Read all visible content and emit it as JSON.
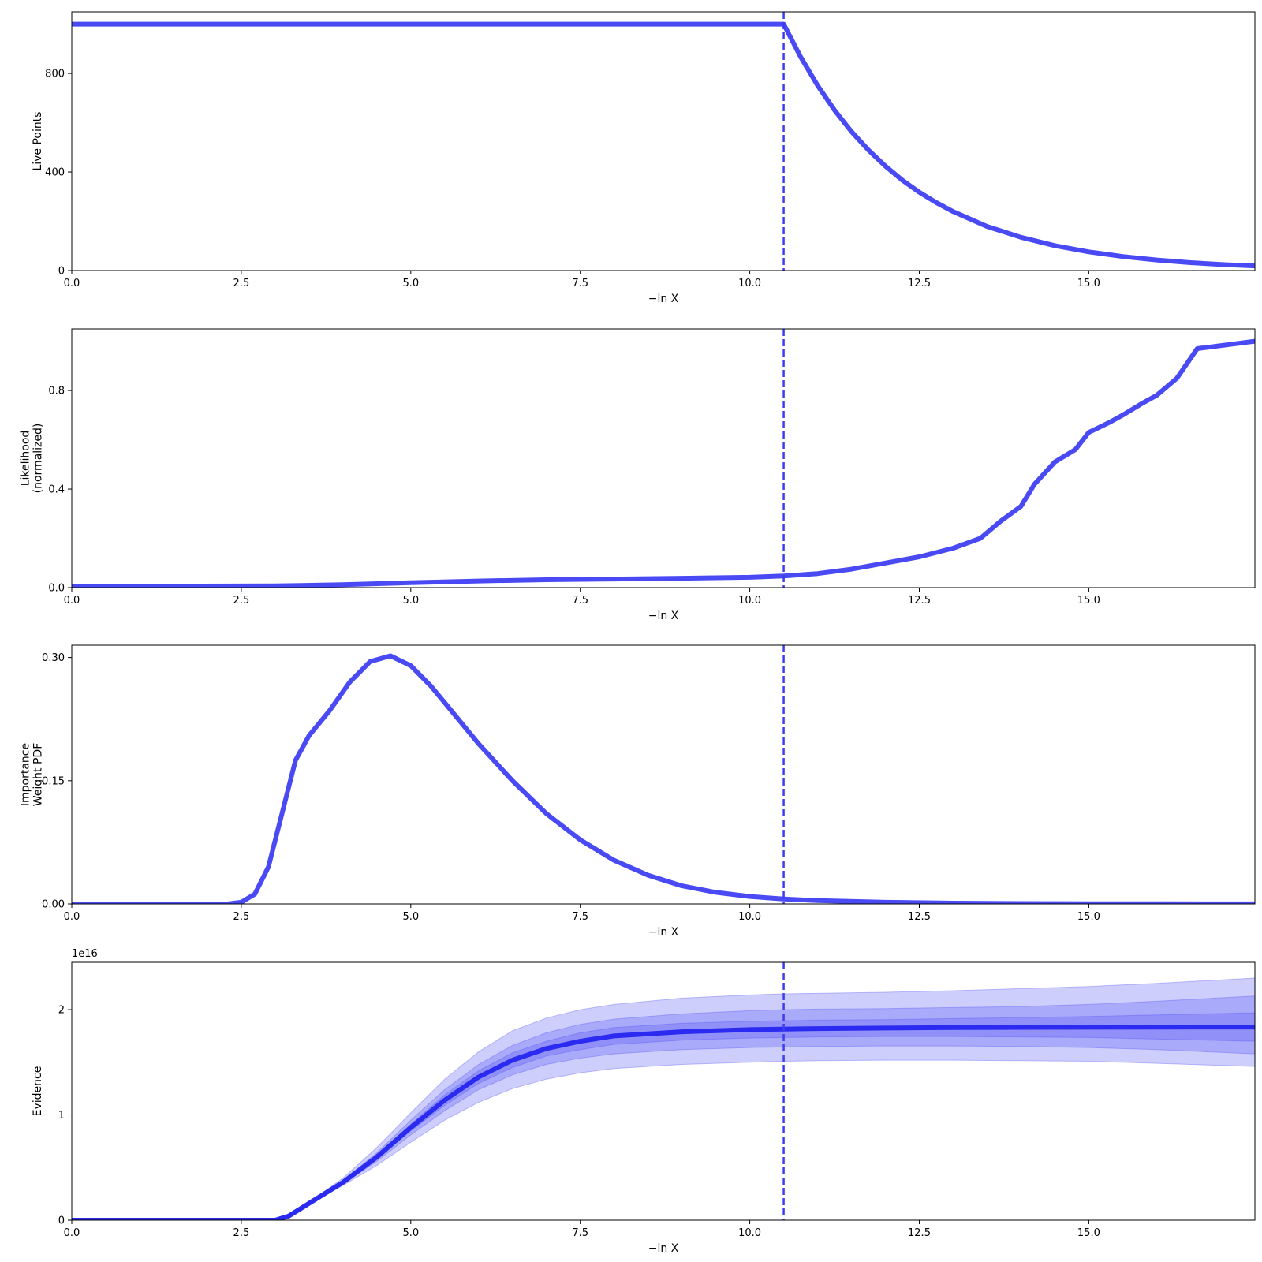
{
  "colors": {
    "line": "#4a4af5",
    "vline": "#3c3cf0",
    "evidence_line": "#2a2af0",
    "band": "#5050f5"
  },
  "chart_data": [
    {
      "type": "line",
      "xlabel": "−ln X",
      "ylabel": [
        "Live Points"
      ],
      "xlim": [
        0,
        17.45
      ],
      "ylim": [
        0,
        1050
      ],
      "xticks": [
        0,
        2.5,
        5,
        7.5,
        10,
        12.5,
        15
      ],
      "xtick_labels": [
        "0.0",
        "2.5",
        "5.0",
        "7.5",
        "10.0",
        "12.5",
        "15.0"
      ],
      "yticks": [
        0,
        400,
        800
      ],
      "ytick_labels": [
        "0",
        "400",
        "800"
      ],
      "vline": 10.5,
      "grid": false,
      "series": [
        {
          "x": [
            0,
            10.5,
            10.75,
            11,
            11.25,
            11.5,
            11.75,
            12,
            12.25,
            12.5,
            12.75,
            13,
            13.5,
            14,
            14.5,
            15,
            15.5,
            16,
            16.5,
            17,
            17.45
          ],
          "y": [
            1000,
            1000,
            867,
            751,
            651,
            564,
            489,
            424,
            367,
            318,
            276,
            239,
            179,
            135,
            101,
            76,
            57,
            43,
            32,
            24,
            19
          ]
        }
      ]
    },
    {
      "type": "line",
      "xlabel": "−ln X",
      "ylabel": [
        "Likelihood",
        "(normalized)"
      ],
      "xlim": [
        0,
        17.45
      ],
      "ylim": [
        0,
        1.05
      ],
      "xticks": [
        0,
        2.5,
        5,
        7.5,
        10,
        12.5,
        15
      ],
      "xtick_labels": [
        "0.0",
        "2.5",
        "5.0",
        "7.5",
        "10.0",
        "12.5",
        "15.0"
      ],
      "yticks": [
        0,
        0.4,
        0.8
      ],
      "ytick_labels": [
        "0.0",
        "0.4",
        "0.8"
      ],
      "vline": 10.5,
      "grid": false,
      "series": [
        {
          "x": [
            0,
            3.0,
            4.0,
            5.0,
            6.0,
            7.0,
            8.0,
            9.0,
            10.0,
            10.5,
            11.0,
            11.5,
            12.0,
            12.5,
            13.0,
            13.4,
            13.7,
            14.0,
            14.2,
            14.5,
            14.8,
            15.0,
            15.3,
            15.5,
            15.8,
            16.0,
            16.3,
            16.6,
            17.45
          ],
          "y": [
            0.005,
            0.007,
            0.012,
            0.02,
            0.027,
            0.032,
            0.035,
            0.038,
            0.042,
            0.047,
            0.057,
            0.075,
            0.1,
            0.125,
            0.16,
            0.2,
            0.27,
            0.33,
            0.42,
            0.51,
            0.56,
            0.63,
            0.67,
            0.7,
            0.75,
            0.78,
            0.85,
            0.97,
            1.0
          ]
        }
      ]
    },
    {
      "type": "line",
      "xlabel": "−ln X",
      "ylabel": [
        "Importance",
        "Weight PDF"
      ],
      "xlim": [
        0,
        17.45
      ],
      "ylim": [
        0,
        0.315
      ],
      "xticks": [
        0,
        2.5,
        5,
        7.5,
        10,
        12.5,
        15
      ],
      "xtick_labels": [
        "0.0",
        "2.5",
        "5.0",
        "7.5",
        "10.0",
        "12.5",
        "15.0"
      ],
      "yticks": [
        0,
        0.15,
        0.3
      ],
      "ytick_labels": [
        "0.00",
        "0.15",
        "0.30"
      ],
      "vline": 10.5,
      "grid": false,
      "series": [
        {
          "x": [
            0,
            2.3,
            2.5,
            2.7,
            2.9,
            3.1,
            3.3,
            3.5,
            3.8,
            4.1,
            4.4,
            4.7,
            5.0,
            5.3,
            5.6,
            6.0,
            6.5,
            7.0,
            7.5,
            8.0,
            8.5,
            9.0,
            9.5,
            10.0,
            10.5,
            11.0,
            12.0,
            13.0,
            14.0,
            15.0,
            16.0,
            17.45
          ],
          "y": [
            0,
            0,
            0.002,
            0.012,
            0.045,
            0.11,
            0.175,
            0.205,
            0.235,
            0.27,
            0.295,
            0.302,
            0.29,
            0.265,
            0.235,
            0.195,
            0.15,
            0.11,
            0.078,
            0.053,
            0.035,
            0.022,
            0.014,
            0.009,
            0.006,
            0.004,
            0.002,
            0.001,
            0.0005,
            0.0003,
            0.0002,
            0.0001
          ]
        }
      ]
    },
    {
      "type": "area",
      "xlabel": "−ln X",
      "ylabel": [
        "Evidence"
      ],
      "y_scale_label": "1e16",
      "xlim": [
        0,
        17.45
      ],
      "ylim": [
        0,
        2.45
      ],
      "xticks": [
        0,
        2.5,
        5,
        7.5,
        10,
        12.5,
        15
      ],
      "xtick_labels": [
        "0.0",
        "2.5",
        "5.0",
        "7.5",
        "10.0",
        "12.5",
        "15.0"
      ],
      "yticks": [
        0,
        1,
        2
      ],
      "ytick_labels": [
        "0",
        "1",
        "2"
      ],
      "vline": 10.5,
      "grid": false,
      "series": [
        {
          "x": [
            0,
            3.0,
            3.2,
            3.5,
            4.0,
            4.5,
            5.0,
            5.5,
            6.0,
            6.5,
            7.0,
            7.5,
            8.0,
            9.0,
            10.0,
            10.5,
            11.0,
            12.0,
            13.0,
            14.0,
            15.0,
            16.0,
            17.45
          ],
          "y": [
            0,
            0,
            0.04,
            0.16,
            0.36,
            0.6,
            0.88,
            1.14,
            1.36,
            1.52,
            1.63,
            1.7,
            1.75,
            1.79,
            1.81,
            1.815,
            1.82,
            1.825,
            1.83,
            1.832,
            1.833,
            1.834,
            1.835
          ],
          "bands": [
            {
              "lower": [
                0,
                0,
                0.04,
                0.15,
                0.33,
                0.52,
                0.74,
                0.95,
                1.12,
                1.25,
                1.34,
                1.4,
                1.44,
                1.48,
                1.5,
                1.51,
                1.515,
                1.52,
                1.52,
                1.515,
                1.51,
                1.49,
                1.46
              ],
              "upper": [
                0,
                0,
                0.04,
                0.17,
                0.4,
                0.69,
                1.02,
                1.34,
                1.6,
                1.8,
                1.92,
                2.0,
                2.05,
                2.11,
                2.14,
                2.15,
                2.155,
                2.165,
                2.18,
                2.2,
                2.22,
                2.25,
                2.3
              ]
            },
            {
              "lower": [
                0,
                0,
                0.04,
                0.155,
                0.345,
                0.56,
                0.81,
                1.04,
                1.24,
                1.38,
                1.48,
                1.54,
                1.58,
                1.62,
                1.64,
                1.645,
                1.65,
                1.655,
                1.655,
                1.65,
                1.64,
                1.62,
                1.58
              ],
              "upper": [
                0,
                0,
                0.04,
                0.165,
                0.38,
                0.64,
                0.95,
                1.24,
                1.48,
                1.66,
                1.78,
                1.86,
                1.91,
                1.96,
                1.99,
                2.0,
                2.005,
                2.01,
                2.02,
                2.03,
                2.05,
                2.08,
                2.13
              ]
            },
            {
              "lower": [
                0,
                0,
                0.04,
                0.158,
                0.352,
                0.58,
                0.85,
                1.09,
                1.3,
                1.45,
                1.56,
                1.62,
                1.67,
                1.71,
                1.73,
                1.735,
                1.74,
                1.745,
                1.745,
                1.74,
                1.735,
                1.72,
                1.7
              ],
              "upper": [
                0,
                0,
                0.04,
                0.162,
                0.368,
                0.62,
                0.91,
                1.19,
                1.42,
                1.59,
                1.7,
                1.78,
                1.83,
                1.87,
                1.89,
                1.895,
                1.9,
                1.905,
                1.915,
                1.925,
                1.935,
                1.95,
                1.97
              ]
            }
          ]
        }
      ]
    }
  ]
}
